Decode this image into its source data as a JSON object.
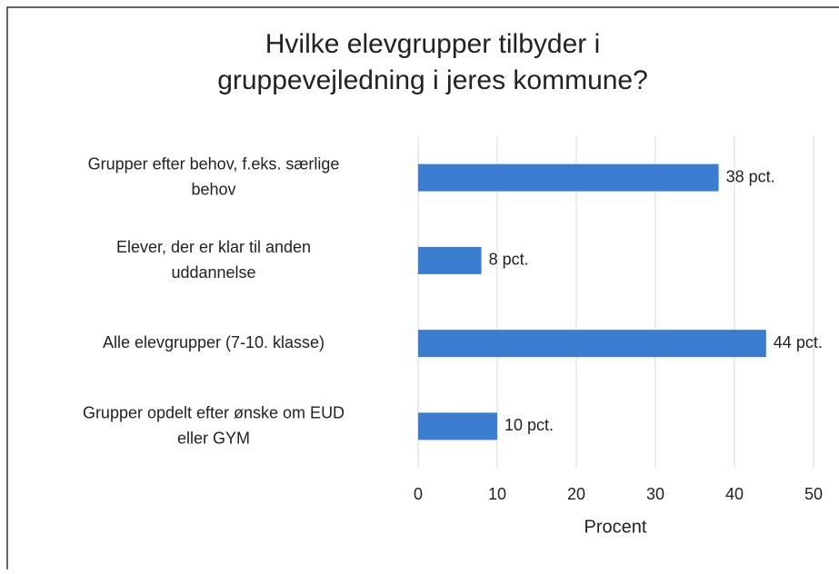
{
  "chart_data": {
    "type": "bar",
    "orientation": "horizontal",
    "title": "Hvilke elevgrupper tilbyder i\ngruppevejledning i jeres kommune?",
    "categories": [
      "Grupper efter behov, f.eks. særlige\nbehov",
      "Elever, der er klar til anden\nuddannelse",
      "Alle elevgrupper (7-10. klasse)",
      "Grupper opdelt efter ønske om EUD\neller GYM"
    ],
    "values": [
      38,
      8,
      44,
      10
    ],
    "value_labels": [
      "38 pct.",
      "8 pct.",
      "44 pct.",
      "10 pct."
    ],
    "color": "#3a7dd0",
    "xlabel": "Procent",
    "xlim": [
      0,
      50
    ],
    "xticks": [
      0,
      10,
      20,
      30,
      40,
      50
    ],
    "grid": true
  }
}
